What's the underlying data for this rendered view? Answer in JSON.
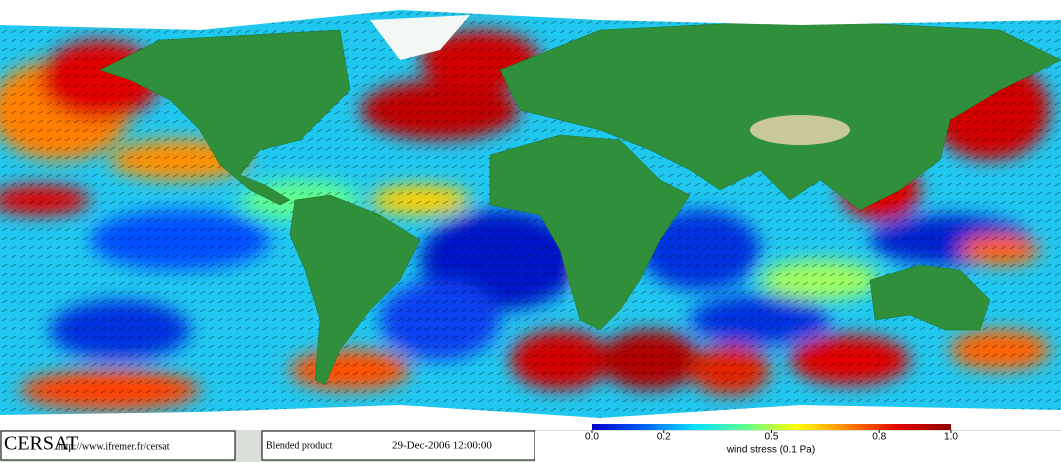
{
  "header": {
    "logo": "CERSAT",
    "url": "http://www.ifremer.fr/cersat"
  },
  "product": {
    "name": "Blended product",
    "date": "29-Dec-2006 12:00:00"
  },
  "colorbar": {
    "label": "wind stress (0.1 Pa)",
    "range": [
      0,
      1
    ],
    "ticks": [
      {
        "value": 0,
        "label": "0.0"
      },
      0.2,
      0.5,
      0.8,
      {
        "value": 1,
        "label": "1.0"
      }
    ],
    "colors": [
      "#0000c8",
      "#0060ff",
      "#00e0ff",
      "#60ff90",
      "#ffff00",
      "#ff8000",
      "#e00000",
      "#900000"
    ]
  }
}
